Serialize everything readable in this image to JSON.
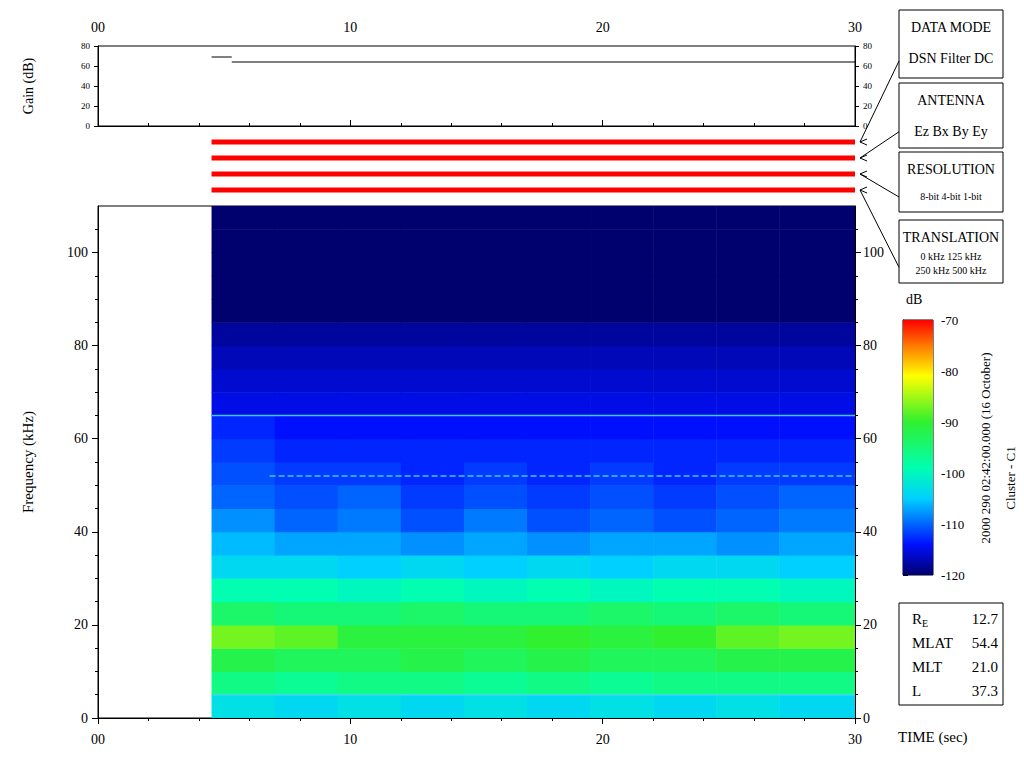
{
  "chart_data": {
    "type": "heatmap",
    "x_label": "TIME (sec)",
    "y_label": "Frequency (kHz)",
    "xlim": [
      0,
      30
    ],
    "xticks": [
      {
        "value": 0,
        "label": "00"
      },
      10,
      20,
      30
    ],
    "ylim": [
      0,
      110
    ],
    "yticks": [
      0,
      20,
      40,
      60,
      80,
      100
    ],
    "grid": false,
    "x_edges": [
      4.5,
      7,
      9.5,
      12,
      14.5,
      17,
      19.5,
      22,
      24.5,
      27,
      30
    ],
    "y_edges": [
      0,
      5,
      10,
      15,
      20,
      25,
      30,
      35,
      40,
      45,
      50,
      55,
      60,
      65,
      70,
      75,
      80,
      85,
      90,
      95,
      100,
      105,
      110
    ],
    "cells": [
      [
        -103,
        -104,
        -103,
        -104,
        -103,
        -104,
        -103,
        -104,
        -103,
        -104
      ],
      [
        -96,
        -97,
        -96,
        -96,
        -97,
        -96,
        -97,
        -96,
        -96,
        -96
      ],
      [
        -92,
        -93,
        -93,
        -92,
        -93,
        -92,
        -93,
        -93,
        -92,
        -92
      ],
      [
        -87,
        -88,
        -91,
        -91,
        -91,
        -90,
        -91,
        -90,
        -88,
        -87
      ],
      [
        -94,
        -95,
        -95,
        -94,
        -95,
        -95,
        -94,
        -95,
        -94,
        -95
      ],
      [
        -99,
        -99,
        -100,
        -99,
        -100,
        -99,
        -100,
        -99,
        -99,
        -100
      ],
      [
        -104,
        -104,
        -105,
        -104,
        -105,
        -104,
        -105,
        -104,
        -104,
        -105
      ],
      [
        -106,
        -107,
        -107,
        -108,
        -107,
        -108,
        -107,
        -107,
        -108,
        -107
      ],
      [
        -108,
        -110,
        -109,
        -111,
        -109,
        -111,
        -110,
        -111,
        -110,
        -109
      ],
      [
        -110,
        -111,
        -110,
        -112,
        -111,
        -112,
        -111,
        -112,
        -111,
        -110
      ],
      [
        -111,
        -112,
        -112,
        -113,
        -112,
        -113,
        -112,
        -113,
        -112,
        -112
      ],
      [
        -112,
        -113,
        -113,
        -113,
        -113,
        -113,
        -113,
        -113,
        -113,
        -113
      ],
      [
        -113,
        -114,
        -114,
        -114,
        -114,
        -114,
        -114,
        -114,
        -114,
        -114
      ],
      [
        -115,
        -115,
        -115,
        -115,
        -115,
        -115,
        -115,
        -115,
        -115,
        -115
      ],
      [
        -116,
        -116,
        -116,
        -116,
        -116,
        -116,
        -116,
        -116,
        -116,
        -116
      ],
      [
        -117,
        -117,
        -117,
        -117,
        -117,
        -117,
        -117,
        -117,
        -117,
        -117
      ],
      [
        -118,
        -118,
        -118,
        -118,
        -118,
        -118,
        -118,
        -118,
        -118,
        -118
      ],
      [
        -120,
        -120,
        -120,
        -120,
        -120,
        -120,
        -120,
        -120,
        -120,
        -120
      ],
      [
        -120,
        -120,
        -120,
        -120,
        -120,
        -120,
        -120,
        -120,
        -120,
        -120
      ],
      [
        -120,
        -120,
        -120,
        -120,
        -120,
        -120,
        -120,
        -120,
        -120,
        -120
      ],
      [
        -120,
        -120,
        -120,
        -120,
        -120,
        -120,
        -120,
        -120,
        -120,
        -120
      ],
      [
        -120,
        -120,
        -120,
        -120,
        -120,
        -120,
        -120,
        -120,
        -120,
        -120
      ]
    ],
    "lines": [
      {
        "y": 65,
        "x": [
          4.5,
          30
        ],
        "line_style": "solid",
        "color": "#40c8e8"
      },
      {
        "y": 52,
        "x": [
          6.8,
          30
        ],
        "line_style": "dashed",
        "color": "#40c8e8"
      },
      {
        "y": 5,
        "x": [
          4.5,
          30
        ],
        "line_style": "solid",
        "color": "#40d8f0"
      }
    ],
    "colorbar": {
      "label": "dB",
      "lim": [
        -120,
        -70
      ],
      "ticks": [
        -120,
        -110,
        -100,
        -90,
        -80,
        -70
      ]
    },
    "gain": {
      "label": "Gain (dB)",
      "ylim": [
        0,
        80
      ],
      "yticks": [
        0,
        20,
        40,
        60,
        80
      ],
      "series": [
        {
          "x": [
            4.5,
            5.3
          ],
          "values": [
            69,
            69
          ],
          "color": "#000000"
        },
        {
          "x": [
            5.3,
            30
          ],
          "values": [
            64,
            64
          ],
          "color": "#000000"
        }
      ]
    },
    "indicators": [
      {
        "title": "DATA MODE",
        "selected": "DSN",
        "x": [
          4.5,
          30
        ],
        "rows": [
          [
            {
              "text": "DSN",
              "color": "#ff0000"
            },
            {
              "text": "Filter",
              "color": "#00c000"
            },
            {
              "text": "DC",
              "color": "#0000ff"
            }
          ]
        ]
      },
      {
        "title": "ANTENNA",
        "selected": "Ez",
        "x": [
          4.5,
          30
        ],
        "rows": [
          [
            {
              "text": "Ez",
              "color": "#ff0000"
            },
            {
              "text": "Bx",
              "color": "#00c000"
            },
            {
              "text": "By",
              "color": "#0000ff"
            },
            {
              "text": "Ey",
              "color": "#000000"
            }
          ]
        ]
      },
      {
        "title": "RESOLUTION",
        "selected": "8-bit",
        "x": [
          4.5,
          30
        ],
        "rows": [
          [
            {
              "text": "8-bit",
              "color": "#ff0000"
            },
            {
              "text": "4-bit",
              "color": "#00c000"
            },
            {
              "text": "1-bit",
              "color": "#0000ff"
            }
          ]
        ]
      },
      {
        "title": "TRANSLATION",
        "selected": "0 kHz",
        "x": [
          4.5,
          30
        ],
        "rows": [
          [
            {
              "text": "0 kHz",
              "color": "#ff0000"
            },
            {
              "text": "125 kHz",
              "color": "#00c000"
            }
          ],
          [
            {
              "text": "250 kHz",
              "color": "#0000ff"
            },
            {
              "text": "500 kHz",
              "color": "#000000"
            }
          ]
        ]
      }
    ],
    "side_texts": [
      "2000 290 02:42:00.000 (16 October)",
      "Cluster - C1"
    ],
    "ephemeris": [
      {
        "name": "R",
        "sub": "E",
        "value": "12.7"
      },
      {
        "name": "MLAT",
        "value": "54.4"
      },
      {
        "name": "MLT",
        "value": "21.0"
      },
      {
        "name": "L",
        "value": "37.3"
      }
    ]
  }
}
